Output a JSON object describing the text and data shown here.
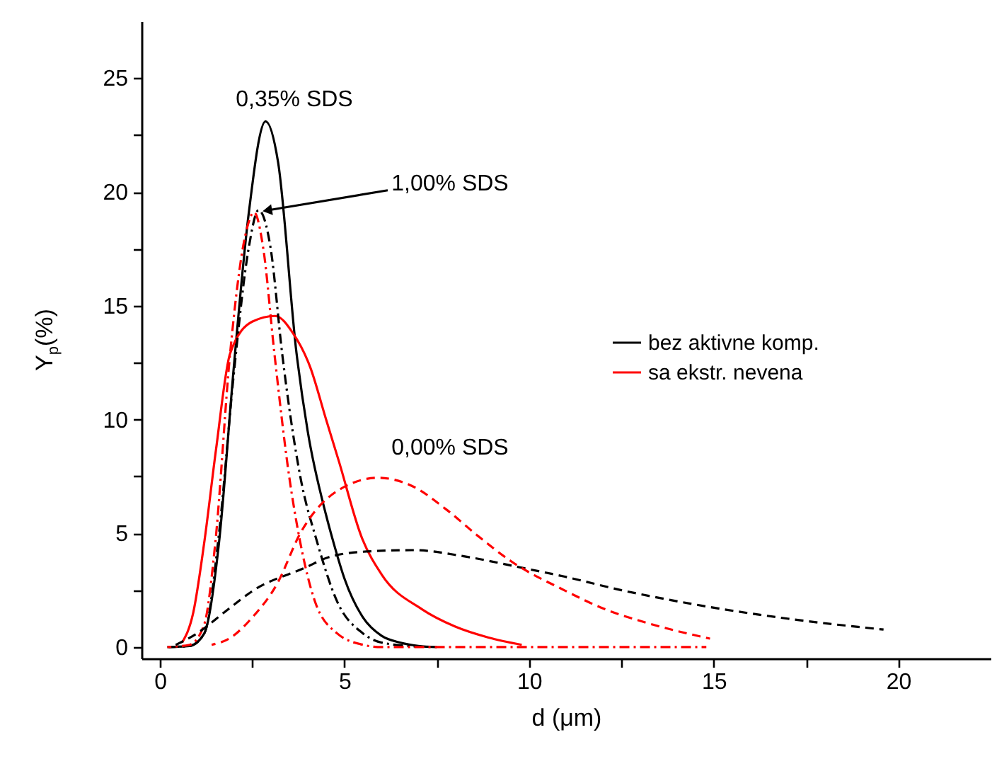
{
  "chart_data": {
    "type": "line",
    "xlabel": "d (μm)",
    "ylabel": "Y$_{p}$(%)",
    "xlim": [
      -0.5,
      22.5
    ],
    "ylim": [
      -0.5,
      27.5
    ],
    "xticks": [
      0,
      {
        "value": 2.5,
        "label": null
      },
      5,
      {
        "value": 7.5,
        "label": null
      },
      10,
      {
        "value": 12.5,
        "label": null
      },
      15,
      {
        "value": 17.5,
        "label": null
      },
      20
    ],
    "yticks": [
      0,
      {
        "value": 2.5,
        "label": null
      },
      5,
      {
        "value": 7.5,
        "label": null
      },
      10,
      {
        "value": 12.5,
        "label": null
      },
      15,
      {
        "value": 17.5,
        "label": null
      },
      20,
      {
        "value": 22.5,
        "label": null
      },
      25
    ],
    "legend": "right",
    "annotations": [
      "0,35% SDS",
      {
        "text": "1,00% SDS",
        "x": 2.95,
        "y": 19.2
      },
      "0,00% SDS"
    ],
    "series": [
      {
        "name": "bez aktivne komp.",
        "color": "#000000",
        "line_style": "solid",
        "x": [
          0.2,
          0.8,
          1.2,
          1.6,
          2.0,
          2.4,
          2.86,
          3.2,
          3.7,
          4.0,
          4.5,
          4.7,
          5.0,
          5.5,
          6.0,
          6.5,
          7.0,
          7.5
        ],
        "values": [
          0,
          0.05,
          0.6,
          4.6,
          12.3,
          19,
          23.1,
          21.3,
          12.9,
          9.5,
          5.8,
          4.6,
          3,
          1.3,
          0.5,
          0.2,
          0.05,
          0
        ]
      },
      {
        "name": "sa ekstr. nevena",
        "color": "#ff0000",
        "line_style": "solid",
        "x": [
          0.6,
          0.9,
          1.2,
          1.52,
          1.9,
          2.5,
          3.12,
          3.6,
          4.07,
          4.5,
          4.84,
          5.47,
          6.0,
          7.1,
          8.0,
          8.9,
          9.8
        ],
        "values": [
          0.2,
          1.5,
          4.6,
          8.7,
          12.9,
          14.3,
          14.55,
          13.8,
          12.3,
          10,
          8.2,
          4.8,
          3.2,
          1.66,
          0.9,
          0.42,
          0.1
        ]
      },
      {
        "color": "#000000",
        "line_style": "dashdot",
        "x": [
          0.2,
          0.8,
          1.2,
          1.6,
          2.0,
          2.4,
          2.67,
          3.0,
          3.31,
          3.8,
          4.26,
          4.8,
          5.5,
          6.0,
          7.0
        ],
        "values": [
          0,
          0.05,
          0.6,
          5,
          12,
          17.5,
          19.2,
          17.5,
          12.9,
          7.5,
          4.6,
          2,
          0.6,
          0.2,
          0.02
        ]
      },
      {
        "color": "#ff0000",
        "line_style": "dashdot",
        "x": [
          0.2,
          0.8,
          1.2,
          1.5,
          1.9,
          2.3,
          2.55,
          2.8,
          3.1,
          3.5,
          3.8,
          4.2,
          4.8,
          5.5,
          6.0,
          10.0,
          14.8
        ],
        "values": [
          0,
          0.1,
          1,
          4.6,
          12.9,
          18,
          19.1,
          17.5,
          12.9,
          7.5,
          4.6,
          2,
          0.6,
          0.1,
          0,
          0,
          0
        ]
      },
      {
        "color": "#000000",
        "line_style": "dashed",
        "x": [
          0.3,
          1.0,
          1.8,
          2.54,
          3.95,
          4.57,
          5.6,
          6.87,
          8.2,
          9.67,
          10.95,
          12.5,
          14.5,
          17.0,
          19.6
        ],
        "values": [
          0,
          0.6,
          1.6,
          2.5,
          3.5,
          3.95,
          4.2,
          4.26,
          4.0,
          3.53,
          3.1,
          2.5,
          1.87,
          1.25,
          0.77
        ]
      },
      {
        "color": "#ff0000",
        "line_style": "dashed",
        "x": [
          1.4,
          1.9,
          2.5,
          3.18,
          3.8,
          4.84,
          5.92,
          6.8,
          7.77,
          8.6,
          9.54,
          10.95,
          12.0,
          13.24,
          14.9
        ],
        "values": [
          0.1,
          0.4,
          1.3,
          2.8,
          5.0,
          6.9,
          7.44,
          7.1,
          6.03,
          4.9,
          3.74,
          2.5,
          1.7,
          1.04,
          0.37
        ]
      }
    ]
  }
}
